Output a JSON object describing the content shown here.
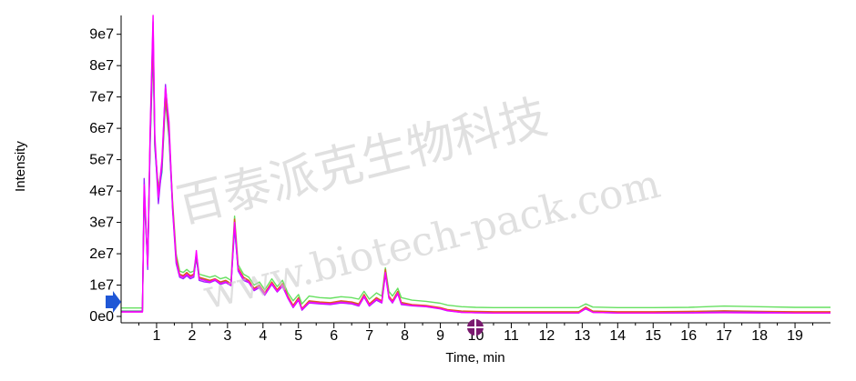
{
  "chart_data": {
    "type": "line",
    "title": "",
    "xlabel": "Time, min",
    "ylabel": "Intensity",
    "xlim": [
      0,
      20
    ],
    "ylim": [
      0,
      96000000
    ],
    "x_ticks": [
      "1",
      "2",
      "3",
      "4",
      "5",
      "6",
      "7",
      "8",
      "9",
      "10",
      "11",
      "12",
      "13",
      "14",
      "15",
      "16",
      "17",
      "18",
      "19"
    ],
    "y_ticks": [
      "0e0",
      "1e7",
      "2e7",
      "3e7",
      "4e7",
      "5e7",
      "6e7",
      "7e7",
      "8e7",
      "9e7"
    ],
    "grid": false,
    "legend": "none",
    "series": [
      {
        "color": "#ff00ff",
        "x": [
          0,
          0.6,
          0.65,
          0.75,
          0.82,
          0.9,
          0.95,
          1.05,
          1.15,
          1.25,
          1.35,
          1.45,
          1.55,
          1.65,
          1.75,
          1.85,
          1.95,
          2.05,
          2.12,
          2.2,
          2.35,
          2.5,
          2.65,
          2.8,
          2.95,
          3.1,
          3.2,
          3.3,
          3.45,
          3.6,
          3.75,
          3.9,
          4.05,
          4.25,
          4.4,
          4.55,
          4.7,
          4.85,
          5.0,
          5.1,
          5.3,
          5.6,
          5.9,
          6.2,
          6.5,
          6.7,
          6.85,
          7.0,
          7.2,
          7.35,
          7.45,
          7.55,
          7.65,
          7.8,
          7.9,
          8.2,
          8.6,
          9.0,
          9.2,
          9.6,
          10,
          10.5,
          11,
          12,
          12.9,
          13.1,
          13.3,
          14,
          15,
          16,
          17,
          18,
          19,
          20
        ],
        "y": [
          1400000,
          1400000,
          42000000,
          16000000,
          60000000,
          96000000,
          58000000,
          38000000,
          50000000,
          73000000,
          62000000,
          35000000,
          18000000,
          13000000,
          12500000,
          13500000,
          12500000,
          13000000,
          21000000,
          12000000,
          11500000,
          11000000,
          11800000,
          10500000,
          11000000,
          10000000,
          30000000,
          15000000,
          12000000,
          11000000,
          8500000,
          9500000,
          7000000,
          10500000,
          8000000,
          10000000,
          6000000,
          3000000,
          5500000,
          2200000,
          4500000,
          4200000,
          4000000,
          4500000,
          4200000,
          3500000,
          6500000,
          3500000,
          5500000,
          4500000,
          14000000,
          6000000,
          4500000,
          7500000,
          4000000,
          3500000,
          3200000,
          2500000,
          1900000,
          1300000,
          1200000,
          1100000,
          1100000,
          1100000,
          1100000,
          2600000,
          1300000,
          1100000,
          1100000,
          1100000,
          1200000,
          1100000,
          1100000,
          1100000
        ]
      },
      {
        "color": "#9c27ff",
        "x": [
          0,
          0.6,
          0.65,
          0.75,
          0.82,
          0.9,
          0.95,
          1.05,
          1.15,
          1.25,
          1.35,
          1.45,
          1.55,
          1.65,
          1.75,
          1.85,
          1.95,
          2.05,
          2.12,
          2.2,
          2.35,
          2.5,
          2.65,
          2.8,
          2.95,
          3.1,
          3.2,
          3.3,
          3.45,
          3.6,
          3.75,
          3.9,
          4.05,
          4.25,
          4.4,
          4.55,
          4.7,
          4.85,
          5.0,
          5.1,
          5.3,
          5.6,
          5.9,
          6.2,
          6.5,
          6.7,
          6.85,
          7.0,
          7.2,
          7.35,
          7.45,
          7.55,
          7.65,
          7.8,
          7.9,
          8.2,
          8.6,
          9.0,
          9.2,
          9.6,
          10,
          10.5,
          11,
          12,
          12.9,
          13.1,
          13.3,
          14,
          15,
          16,
          17,
          18,
          19,
          20
        ],
        "y": [
          1500000,
          1500000,
          44000000,
          15000000,
          58000000,
          94000000,
          56000000,
          36000000,
          48000000,
          74000000,
          60000000,
          34000000,
          17000000,
          12500000,
          12000000,
          13000000,
          12000000,
          12500000,
          20000000,
          11500000,
          11000000,
          10800000,
          11500000,
          10200000,
          10800000,
          9800000,
          29000000,
          14500000,
          11500000,
          10800000,
          8200000,
          9200000,
          6800000,
          10200000,
          7800000,
          9600000,
          5800000,
          2800000,
          5200000,
          2000000,
          4300000,
          4000000,
          3800000,
          4300000,
          4000000,
          3300000,
          6200000,
          3300000,
          5200000,
          4300000,
          13500000,
          5800000,
          4300000,
          7200000,
          3800000,
          3400000,
          3100000,
          2400000,
          1800000,
          1300000,
          1200000,
          1100000,
          1100000,
          1100000,
          1100000,
          2400000,
          1300000,
          1100000,
          1100000,
          1200000,
          1400000,
          1300000,
          1100000,
          1100000
        ]
      },
      {
        "color": "#e05a1a",
        "x": [
          0,
          0.6,
          0.65,
          0.75,
          0.82,
          0.9,
          0.95,
          1.05,
          1.15,
          1.25,
          1.35,
          1.45,
          1.55,
          1.65,
          1.75,
          1.85,
          1.95,
          2.05,
          2.12,
          2.2,
          2.35,
          2.5,
          2.65,
          2.8,
          2.95,
          3.1,
          3.2,
          3.3,
          3.45,
          3.6,
          3.75,
          3.9,
          4.05,
          4.25,
          4.4,
          4.55,
          4.7,
          4.85,
          5.0,
          5.1,
          5.3,
          5.6,
          5.9,
          6.2,
          6.5,
          6.7,
          6.85,
          7.0,
          7.2,
          7.35,
          7.45,
          7.55,
          7.65,
          7.8,
          7.9,
          8.2,
          8.6,
          9.0,
          9.2,
          9.6,
          10,
          10.5,
          11,
          12,
          12.9,
          13.1,
          13.3,
          14,
          15,
          16,
          17,
          18,
          19,
          20
        ],
        "y": [
          1600000,
          1600000,
          40000000,
          17000000,
          57000000,
          88000000,
          55000000,
          40000000,
          47000000,
          70000000,
          58000000,
          36000000,
          19000000,
          13500000,
          13000000,
          14000000,
          13000000,
          13500000,
          19000000,
          12500000,
          12000000,
          11500000,
          12000000,
          11000000,
          11500000,
          10500000,
          31000000,
          15500000,
          12500000,
          11500000,
          9000000,
          10000000,
          7500000,
          11000000,
          8500000,
          10500000,
          6500000,
          3500000,
          6000000,
          2500000,
          5000000,
          4600000,
          4400000,
          5000000,
          4600000,
          4000000,
          7000000,
          4000000,
          6000000,
          5000000,
          15000000,
          6500000,
          5000000,
          8000000,
          4500000,
          3800000,
          3500000,
          2800000,
          2200000,
          1700000,
          1600000,
          1500000,
          1500000,
          1500000,
          1500000,
          3000000,
          1700000,
          1500000,
          1500000,
          1600000,
          1800000,
          1600000,
          1500000,
          1500000
        ]
      },
      {
        "color": "#00b8c8",
        "x": [
          0,
          0.6,
          0.65,
          0.75,
          0.82,
          0.9,
          0.95,
          1.05,
          1.15,
          1.25,
          1.35,
          1.45,
          1.55,
          1.65,
          1.75,
          1.85,
          1.95,
          2.05,
          2.12,
          2.2,
          2.35,
          2.5,
          2.65,
          2.8,
          2.95,
          3.1,
          3.2,
          3.3,
          3.45,
          3.6,
          3.75,
          3.9,
          4.05,
          4.25,
          4.4,
          4.55,
          4.7,
          4.85,
          5.0,
          5.1,
          5.3,
          5.6,
          5.9,
          6.2,
          6.5,
          6.7,
          6.85,
          7.0,
          7.2,
          7.35,
          7.45,
          7.55,
          7.65,
          7.8,
          7.9,
          8.2,
          8.6,
          9.0,
          9.2,
          9.6,
          10,
          10.5,
          11,
          12,
          12.9,
          13.1,
          13.3,
          14,
          15,
          16,
          17,
          18,
          19,
          20
        ],
        "y": [
          1700000,
          1700000,
          38000000,
          16500000,
          55000000,
          86000000,
          54000000,
          39000000,
          46000000,
          69000000,
          57000000,
          35000000,
          18500000,
          13000000,
          12800000,
          13600000,
          12800000,
          13200000,
          18500000,
          12200000,
          11800000,
          11200000,
          11800000,
          10800000,
          11200000,
          10200000,
          28000000,
          15000000,
          12000000,
          11200000,
          8800000,
          9800000,
          7200000,
          10800000,
          8200000,
          10200000,
          6200000,
          3300000,
          5800000,
          2400000,
          4800000,
          4400000,
          4200000,
          4800000,
          4400000,
          3800000,
          6800000,
          3800000,
          5800000,
          4800000,
          14500000,
          6200000,
          4800000,
          7800000,
          4300000,
          3700000,
          3400000,
          2700000,
          2100000,
          1600000,
          1500000,
          1400000,
          1400000,
          1400000,
          1400000,
          2800000,
          1600000,
          1400000,
          1400000,
          1500000,
          1700000,
          1500000,
          1400000,
          1400000
        ]
      },
      {
        "color": "#66e060",
        "x": [
          0,
          0.6,
          0.65,
          0.75,
          0.82,
          0.9,
          0.95,
          1.05,
          1.15,
          1.25,
          1.35,
          1.45,
          1.55,
          1.65,
          1.75,
          1.85,
          1.95,
          2.05,
          2.12,
          2.2,
          2.35,
          2.5,
          2.65,
          2.8,
          2.95,
          3.1,
          3.2,
          3.3,
          3.45,
          3.6,
          3.75,
          3.9,
          4.05,
          4.25,
          4.4,
          4.55,
          4.7,
          4.85,
          5.0,
          5.1,
          5.3,
          5.6,
          5.9,
          6.2,
          6.5,
          6.7,
          6.85,
          7.0,
          7.2,
          7.35,
          7.45,
          7.55,
          7.65,
          7.8,
          7.9,
          8.2,
          8.6,
          9.0,
          9.2,
          9.6,
          10,
          10.5,
          11,
          12,
          12.9,
          13.1,
          13.3,
          14,
          15,
          16,
          17,
          18,
          19,
          20
        ],
        "y": [
          2700000,
          2700000,
          39000000,
          18000000,
          56000000,
          87000000,
          55000000,
          41000000,
          48000000,
          71000000,
          59000000,
          37000000,
          20000000,
          14500000,
          14000000,
          15000000,
          14000000,
          14500000,
          20000000,
          13500000,
          13000000,
          12500000,
          13000000,
          12000000,
          12500000,
          11500000,
          32000000,
          16500000,
          13500000,
          12500000,
          10000000,
          11000000,
          8500000,
          12000000,
          9500000,
          11500000,
          7500000,
          5000000,
          7000000,
          4000000,
          6500000,
          6000000,
          5800000,
          6300000,
          6000000,
          5500000,
          8000000,
          5500000,
          7500000,
          6500000,
          15500000,
          8000000,
          6500000,
          9000000,
          6000000,
          5200000,
          4800000,
          4200000,
          3600000,
          3100000,
          2900000,
          2800000,
          2800000,
          2800000,
          2800000,
          4000000,
          3000000,
          2800000,
          2800000,
          2900000,
          3300000,
          3100000,
          2900000,
          2900000
        ]
      }
    ]
  },
  "watermark": {
    "line1": "百泰派克生物科技",
    "line2": "www.biotech-pack.com"
  },
  "marker_colors": {
    "start_arrow": "#1f57d6",
    "cursor_marker": "#7a1a6f"
  }
}
